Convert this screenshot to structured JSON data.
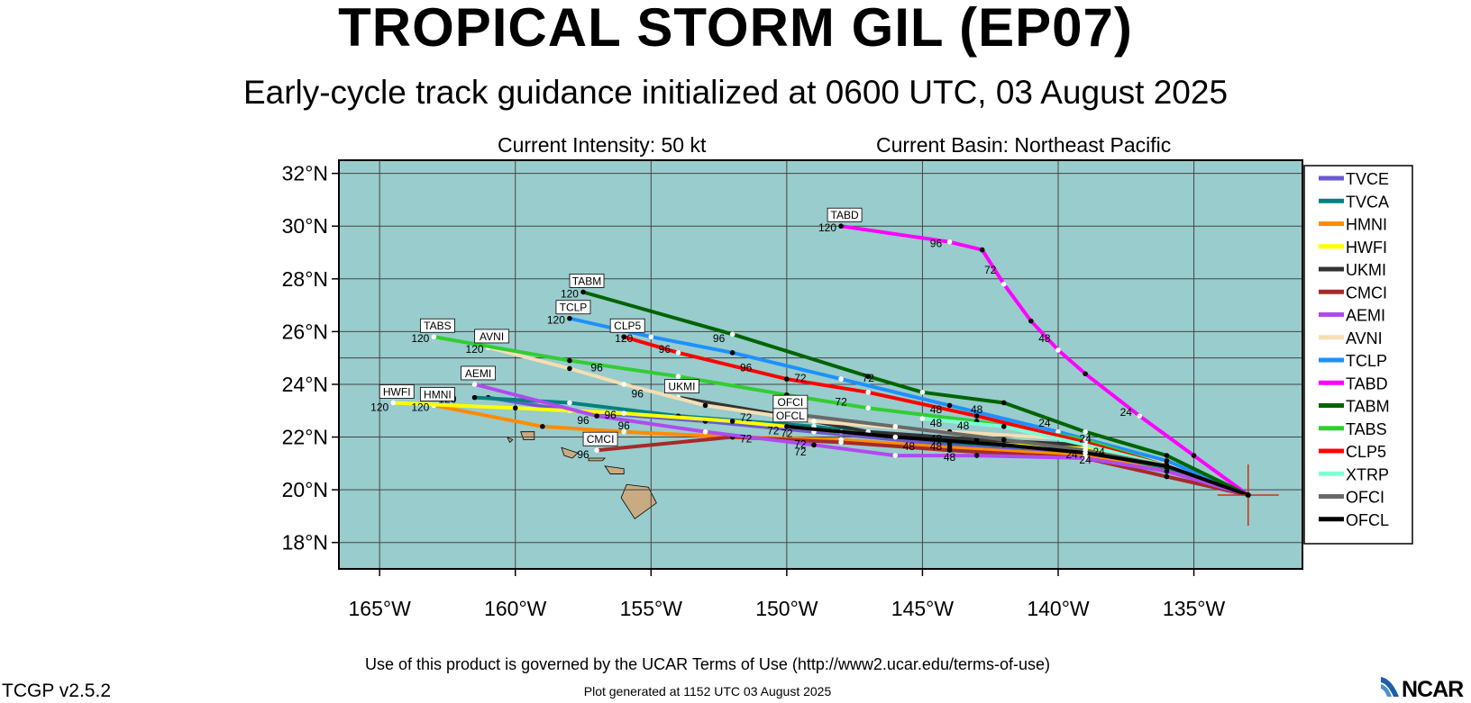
{
  "header": {
    "title": "TROPICAL STORM GIL (EP07)",
    "subtitle": "Early-cycle track guidance initialized at 0600 UTC, 03 August 2025",
    "intensity": "Current Intensity: 50 kt",
    "basin": "Current Basin: Northeast Pacific"
  },
  "footer": {
    "terms": "Use of this product is governed by the UCAR Terms of Use (http://www2.ucar.edu/terms-of-use)",
    "version": "TCGP v2.5.2",
    "generated": "Plot generated at 1152 UTC   03 August 2025",
    "logo": "NCAR"
  },
  "map": {
    "lon_range": [
      -166.5,
      -131
    ],
    "lat_range": [
      17,
      32.5
    ],
    "lat_ticks": [
      {
        "value": 32,
        "label": "32°N"
      },
      {
        "value": 30,
        "label": "30°N"
      },
      {
        "value": 28,
        "label": "28°N"
      },
      {
        "value": 26,
        "label": "26°N"
      },
      {
        "value": 24,
        "label": "24°N"
      },
      {
        "value": 22,
        "label": "22°N"
      },
      {
        "value": 20,
        "label": "20°N"
      },
      {
        "value": 18,
        "label": "18°N"
      }
    ],
    "lon_ticks": [
      {
        "value": -165,
        "label": "165°W"
      },
      {
        "value": -160,
        "label": "160°W"
      },
      {
        "value": -155,
        "label": "155°W"
      },
      {
        "value": -150,
        "label": "150°W"
      },
      {
        "value": -145,
        "label": "145°W"
      },
      {
        "value": -140,
        "label": "140°W"
      },
      {
        "value": -135,
        "label": "135°W"
      }
    ],
    "ocean_color": "#99cccc",
    "land_color": "#c8ab82",
    "current_position": {
      "lon": -133,
      "lat": 19.8
    }
  },
  "chart_data": {
    "type": "line",
    "x_unit": "longitude (deg)",
    "y_unit": "latitude (deg N)",
    "series": [
      {
        "name": "TVCE",
        "color": "#6a5acd",
        "points": [
          [
            -133,
            19.8
          ],
          [
            -136,
            20.8
          ],
          [
            -139,
            21.4
          ],
          [
            -144,
            21.7
          ],
          [
            -149,
            22.2
          ],
          [
            -153,
            22.6
          ],
          [
            -158,
            23.0
          ],
          [
            -161,
            23.5
          ]
        ]
      },
      {
        "name": "TVCA",
        "color": "#008080",
        "points": [
          [
            -133,
            19.8
          ],
          [
            -136,
            20.8
          ],
          [
            -139,
            21.5
          ],
          [
            -144,
            21.8
          ],
          [
            -149,
            22.4
          ],
          [
            -154,
            22.8
          ],
          [
            -158,
            23.3
          ],
          [
            -161.5,
            23.5
          ]
        ]
      },
      {
        "name": "HMNI",
        "color": "#ff8c00",
        "points": [
          [
            -133,
            19.8
          ],
          [
            -136,
            20.7
          ],
          [
            -139,
            21.3
          ],
          [
            -144,
            21.6
          ],
          [
            -148,
            21.9
          ],
          [
            -152,
            22.0
          ],
          [
            -156,
            22.2
          ],
          [
            -159,
            22.4
          ],
          [
            -163,
            23.2
          ]
        ],
        "end_label": "HMNI"
      },
      {
        "name": "HWFI",
        "color": "#ffff00",
        "points": [
          [
            -133,
            19.8
          ],
          [
            -136,
            20.9
          ],
          [
            -139,
            21.6
          ],
          [
            -144,
            21.9
          ],
          [
            -148,
            22.2
          ],
          [
            -152,
            22.6
          ],
          [
            -156,
            22.9
          ],
          [
            -160,
            23.1
          ],
          [
            -164.5,
            23.3
          ]
        ],
        "end_label": "HWFI"
      },
      {
        "name": "UKMI",
        "color": "#333333",
        "points": [
          [
            -133,
            19.8
          ],
          [
            -136,
            21.0
          ],
          [
            -139,
            21.7
          ],
          [
            -143,
            21.9
          ],
          [
            -147,
            22.2
          ],
          [
            -150,
            22.8
          ],
          [
            -154,
            23.5
          ]
        ],
        "end_label": "UKMI"
      },
      {
        "name": "CMCI",
        "color": "#a52a2a",
        "points": [
          [
            -133,
            19.8
          ],
          [
            -136,
            20.5
          ],
          [
            -139,
            21.2
          ],
          [
            -144,
            21.5
          ],
          [
            -148,
            21.8
          ],
          [
            -152,
            22.0
          ],
          [
            -157,
            21.5
          ]
        ],
        "end_label": "CMCI"
      },
      {
        "name": "AEMI",
        "color": "#b04af0",
        "points": [
          [
            -133,
            19.8
          ],
          [
            -136,
            20.7
          ],
          [
            -139,
            21.2
          ],
          [
            -143,
            21.3
          ],
          [
            -146,
            21.3
          ],
          [
            -149,
            21.7
          ],
          [
            -153,
            22.2
          ],
          [
            -157,
            22.8
          ],
          [
            -161.5,
            24
          ]
        ],
        "end_label": "AEMI"
      },
      {
        "name": "AVNI",
        "color": "#f5deb3",
        "points": [
          [
            -133,
            19.8
          ],
          [
            -136,
            21.0
          ],
          [
            -139,
            21.9
          ],
          [
            -144,
            22.2
          ],
          [
            -149,
            22.6
          ],
          [
            -153,
            23.2
          ],
          [
            -156,
            24.0
          ],
          [
            -158,
            24.6
          ],
          [
            -161,
            25.4
          ]
        ],
        "end_label": "AVNI"
      },
      {
        "name": "TCLP",
        "color": "#1e90ff",
        "points": [
          [
            -133,
            19.8
          ],
          [
            -136,
            21.1
          ],
          [
            -140,
            22.2
          ],
          [
            -144,
            23.2
          ],
          [
            -148,
            24.2
          ],
          [
            -152,
            25.2
          ],
          [
            -155,
            25.8
          ],
          [
            -158,
            26.5
          ]
        ],
        "end_label": "TCLP"
      },
      {
        "name": "TABD",
        "color": "#ff00ff",
        "points": [
          [
            -133,
            19.8
          ],
          [
            -135,
            21.3
          ],
          [
            -137,
            22.8
          ],
          [
            -139,
            24.4
          ],
          [
            -140,
            25.3
          ],
          [
            -141,
            26.4
          ],
          [
            -142,
            27.8
          ],
          [
            -142.8,
            29.1
          ],
          [
            -144,
            29.4
          ],
          [
            -148,
            30.0
          ]
        ],
        "end_label": "TABD"
      },
      {
        "name": "TABM",
        "color": "#006400",
        "points": [
          [
            -133,
            19.8
          ],
          [
            -136,
            21.3
          ],
          [
            -139,
            22.2
          ],
          [
            -142,
            23.3
          ],
          [
            -145,
            23.7
          ],
          [
            -147,
            24.3
          ],
          [
            -152,
            25.9
          ],
          [
            -157.5,
            27.5
          ]
        ],
        "end_label": "TABM"
      },
      {
        "name": "TABS",
        "color": "#32cd32",
        "points": [
          [
            -133,
            19.8
          ],
          [
            -136,
            20.9
          ],
          [
            -139,
            21.9
          ],
          [
            -143,
            22.6
          ],
          [
            -147,
            23.1
          ],
          [
            -150,
            23.6
          ],
          [
            -154,
            24.3
          ],
          [
            -158,
            24.9
          ],
          [
            -163,
            25.8
          ]
        ],
        "end_label": "TABS"
      },
      {
        "name": "CLP5",
        "color": "#ff0000",
        "points": [
          [
            -133,
            19.8
          ],
          [
            -136,
            20.9
          ],
          [
            -139,
            21.8
          ],
          [
            -143,
            22.8
          ],
          [
            -147,
            23.7
          ],
          [
            -150,
            24.2
          ],
          [
            -154,
            25.2
          ],
          [
            -156,
            25.8
          ]
        ],
        "end_label": "CLP5"
      },
      {
        "name": "XTRP",
        "color": "#7fffd4",
        "points": [
          [
            -133,
            19.8
          ],
          [
            -136,
            20.9
          ],
          [
            -139,
            21.7
          ],
          [
            -142,
            22.4
          ],
          [
            -145,
            22.7
          ]
        ]
      },
      {
        "name": "OFCI",
        "color": "#696969",
        "points": [
          [
            -133,
            19.8
          ],
          [
            -136,
            20.9
          ],
          [
            -139,
            21.5
          ],
          [
            -142,
            21.9
          ],
          [
            -146,
            22.4
          ],
          [
            -150,
            22.9
          ]
        ],
        "end_label": "OFCI"
      },
      {
        "name": "OFCL",
        "color": "#000000",
        "points": [
          [
            -133,
            19.8
          ],
          [
            -136,
            20.9
          ],
          [
            -139,
            21.4
          ],
          [
            -142,
            21.7
          ],
          [
            -146,
            22.0
          ],
          [
            -150,
            22.4
          ]
        ],
        "end_label": "OFCL"
      }
    ],
    "hour_labels": [
      {
        "text": "120",
        "lon": -148.5,
        "lat": 29.8
      },
      {
        "text": "96",
        "lon": -144.5,
        "lat": 29.2
      },
      {
        "text": "72",
        "lon": -142.5,
        "lat": 28.2
      },
      {
        "text": "48",
        "lon": -140.5,
        "lat": 25.6
      },
      {
        "text": "24",
        "lon": -137.5,
        "lat": 22.8
      },
      {
        "text": "120",
        "lon": -158,
        "lat": 27.3
      },
      {
        "text": "120",
        "lon": -158.5,
        "lat": 26.3
      },
      {
        "text": "120",
        "lon": -163.5,
        "lat": 25.6
      },
      {
        "text": "120",
        "lon": -161.5,
        "lat": 25.2
      },
      {
        "text": "120",
        "lon": -156,
        "lat": 25.6
      },
      {
        "text": "96",
        "lon": -152.5,
        "lat": 25.6
      },
      {
        "text": "96",
        "lon": -154.5,
        "lat": 25.2
      },
      {
        "text": "96",
        "lon": -151.5,
        "lat": 24.5
      },
      {
        "text": "96",
        "lon": -157,
        "lat": 24.5
      },
      {
        "text": "96",
        "lon": -155.5,
        "lat": 23.5
      },
      {
        "text": "72",
        "lon": -149.5,
        "lat": 24.1
      },
      {
        "text": "72",
        "lon": -147,
        "lat": 24.1
      },
      {
        "text": "72",
        "lon": -148,
        "lat": 23.2
      },
      {
        "text": "72",
        "lon": -150,
        "lat": 23.0
      },
      {
        "text": "72",
        "lon": -151.5,
        "lat": 22.6
      },
      {
        "text": "48",
        "lon": -144.5,
        "lat": 22.9
      },
      {
        "text": "48",
        "lon": -143,
        "lat": 22.9
      },
      {
        "text": "48",
        "lon": -144.5,
        "lat": 22.4
      },
      {
        "text": "48",
        "lon": -143.5,
        "lat": 22.3
      },
      {
        "text": "24",
        "lon": -140.5,
        "lat": 22.4
      },
      {
        "text": "24",
        "lon": -139,
        "lat": 21.8
      },
      {
        "text": "96",
        "lon": -157.5,
        "lat": 22.5
      },
      {
        "text": "96",
        "lon": -156.5,
        "lat": 22.7
      },
      {
        "text": "96",
        "lon": -156,
        "lat": 22.3
      },
      {
        "text": "96",
        "lon": -156.5,
        "lat": 21.9
      },
      {
        "text": "96",
        "lon": -157.5,
        "lat": 21.2
      },
      {
        "text": "72",
        "lon": -151.5,
        "lat": 21.8
      },
      {
        "text": "72",
        "lon": -150.5,
        "lat": 22.1
      },
      {
        "text": "72",
        "lon": -149.5,
        "lat": 21.6
      },
      {
        "text": "72",
        "lon": -149.5,
        "lat": 21.3
      },
      {
        "text": "72",
        "lon": -150,
        "lat": 22.0
      },
      {
        "text": "48",
        "lon": -145.5,
        "lat": 21.5
      },
      {
        "text": "48",
        "lon": -144.5,
        "lat": 21.5
      },
      {
        "text": "48",
        "lon": -144,
        "lat": 21.1
      },
      {
        "text": "48",
        "lon": -144.5,
        "lat": 21.8
      },
      {
        "text": "24",
        "lon": -139.5,
        "lat": 21.2
      },
      {
        "text": "24",
        "lon": -139,
        "lat": 21.0
      },
      {
        "text": "24",
        "lon": -138.5,
        "lat": 21.3
      },
      {
        "text": "120",
        "lon": -165,
        "lat": 23.0
      },
      {
        "text": "120",
        "lon": -163.5,
        "lat": 23.0
      },
      {
        "text": "120",
        "lon": -162.5,
        "lat": 23.3
      }
    ],
    "legend_position": "right"
  }
}
